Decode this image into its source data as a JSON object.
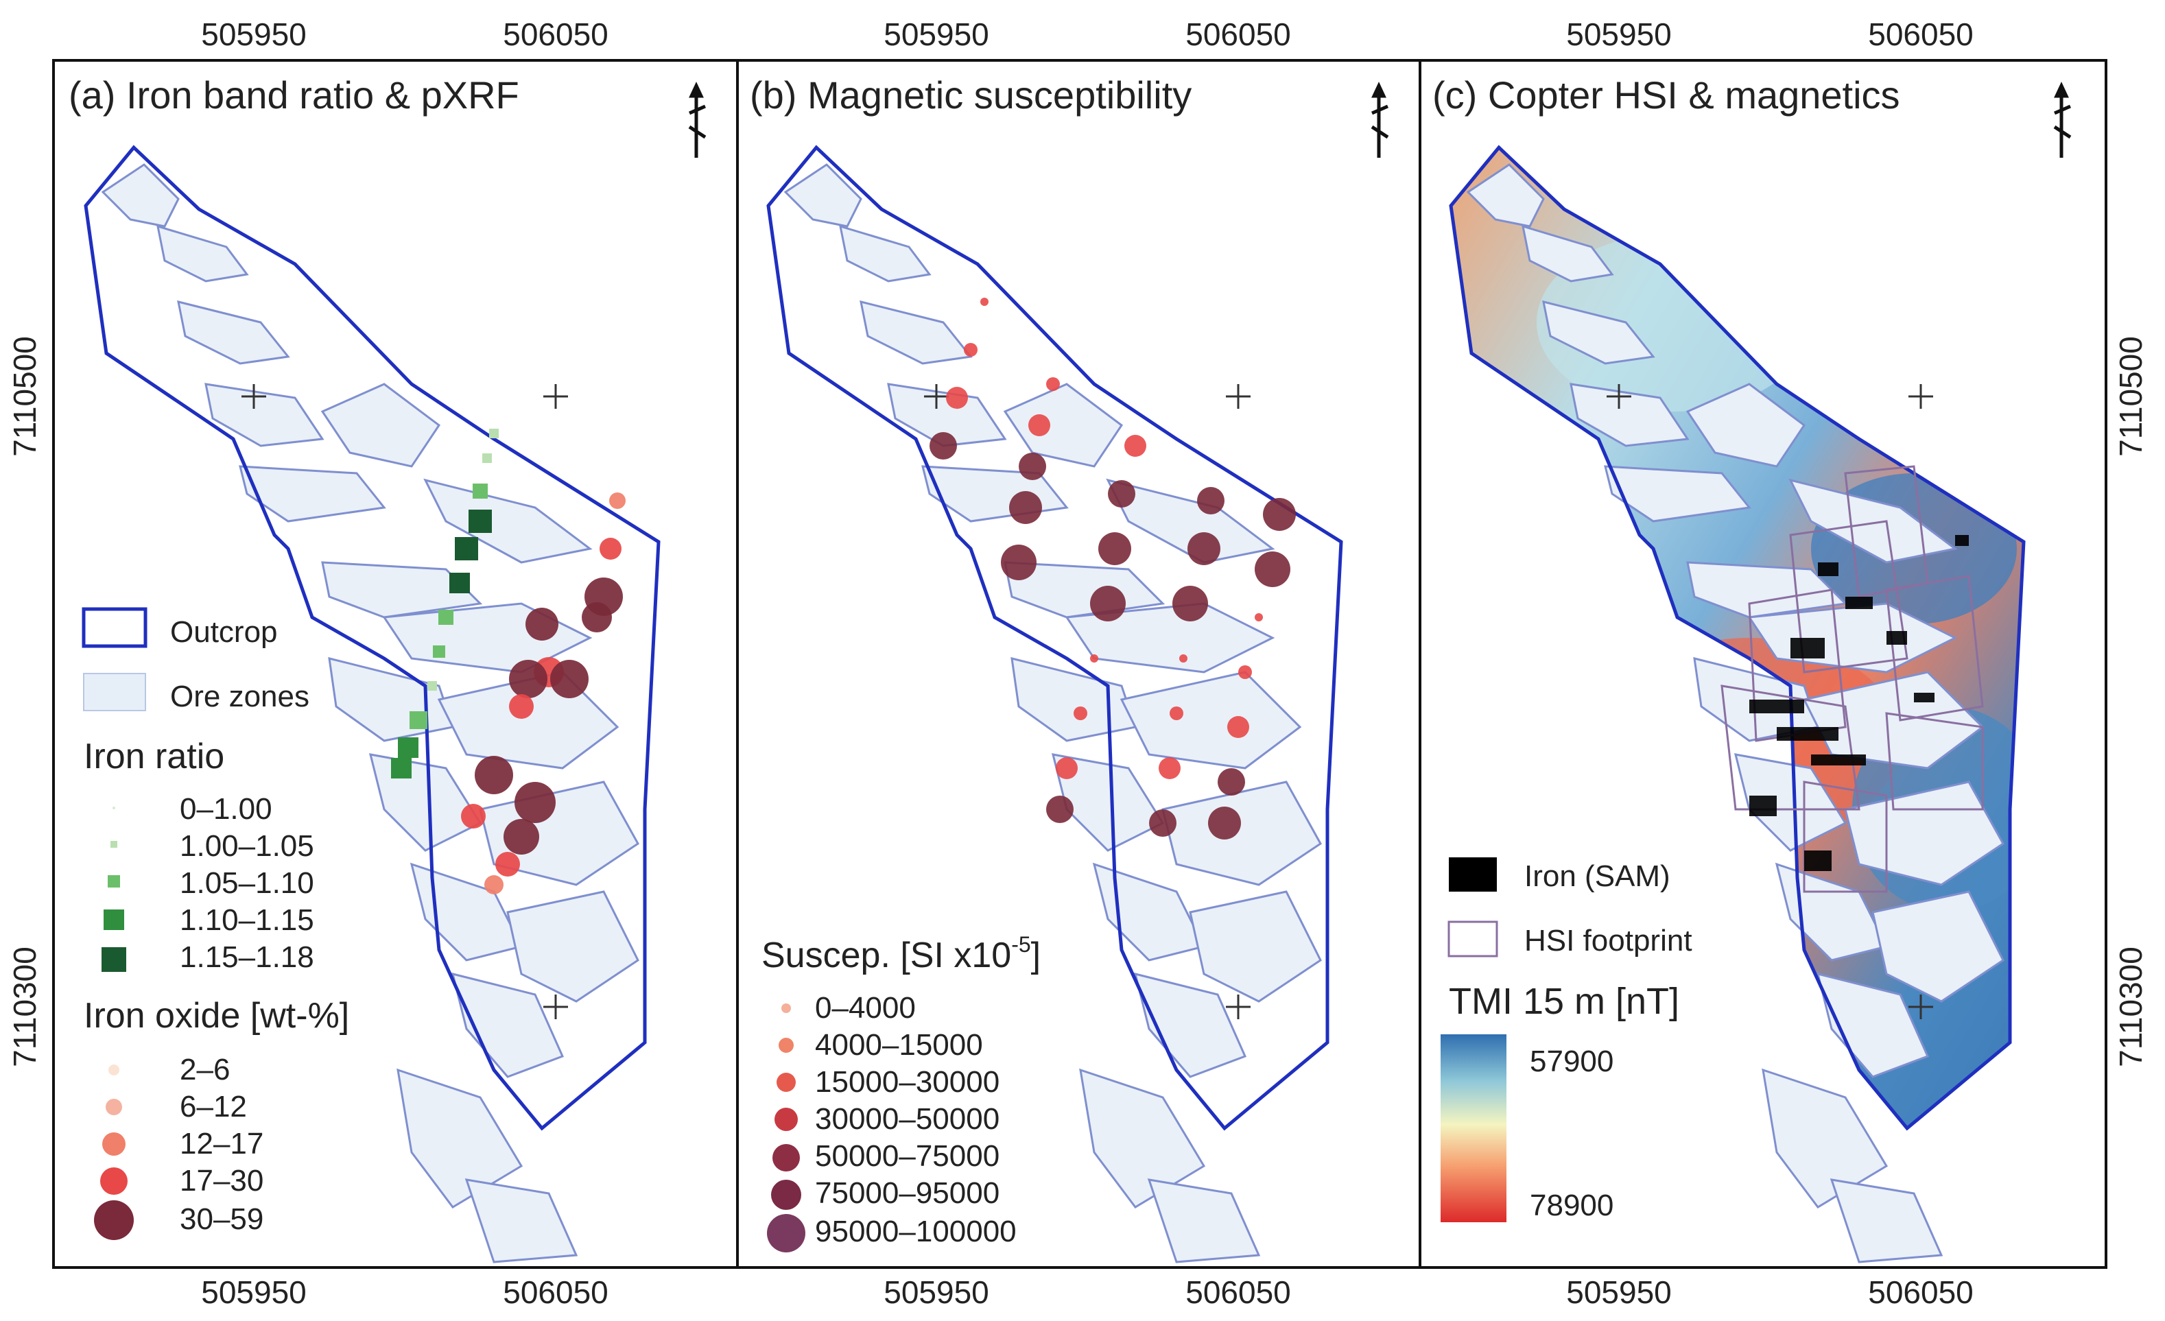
{
  "figure": {
    "x_ticks_top": [
      "505950",
      "506050"
    ],
    "x_ticks_bottom": [
      "505950",
      "506050"
    ],
    "y_ticks_left": [
      "7110500",
      "7110300"
    ],
    "y_ticks_right": [
      "7110500",
      "7110300"
    ]
  },
  "panels": [
    {
      "id": "a",
      "title": "(a) Iron band ratio & pXRF",
      "legend": {
        "outcrop_label": "Outcrop",
        "ore_label": "Ore zones",
        "iron_ratio_title": "Iron ratio",
        "iron_ratio_classes": [
          "0–1.00",
          "1.00–1.05",
          "1.05–1.10",
          "1.10–1.15",
          "1.15–1.18"
        ],
        "iron_oxide_title": "Iron oxide [wt-%]",
        "iron_oxide_classes": [
          "2–6",
          "6–12",
          "12–17",
          "17–30",
          "30–59"
        ]
      }
    },
    {
      "id": "b",
      "title": "(b) Magnetic susceptibility",
      "legend": {
        "suscep_title": "Suscep. [SI x10",
        "suscep_exp": "-5",
        "suscep_close": "]",
        "suscep_classes": [
          "0–4000",
          "4000–15000",
          "15000–30000",
          "30000–50000",
          "50000–75000",
          "75000–95000",
          "95000–100000"
        ]
      }
    },
    {
      "id": "c",
      "title": "(c) Copter HSI & magnetics",
      "legend": {
        "iron_sam_label": "Iron (SAM)",
        "hsi_label": "HSI footprint",
        "tmi_title": "TMI 15 m [nT]",
        "tmi_top": "57900",
        "tmi_bottom": "78900"
      }
    }
  ],
  "colors": {
    "outcrop": "#1f2fbf",
    "ore_fill": "#e9f0f8",
    "ore_line": "#7f8fcf",
    "green_light": "#b9dfb0",
    "green_mid": "#6cbf6a",
    "green_dark": "#2f8f3f",
    "green_darkest": "#1a5a30",
    "red_pale": "#fbe3d4",
    "red_light": "#f5b2a0",
    "red_mid": "#f0806a",
    "red": "#e84848",
    "maroon": "#7a2a3a",
    "iron_black": "#000000",
    "hsi_footprint": "#8a6fa0"
  }
}
